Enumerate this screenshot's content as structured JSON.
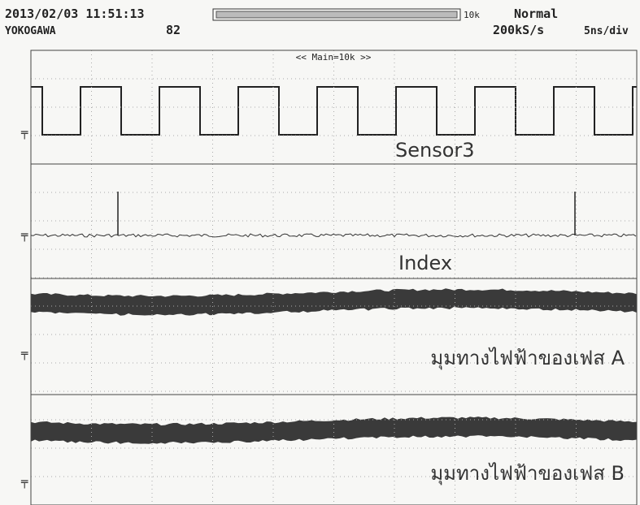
{
  "header": {
    "datetime": "2013/02/03 11:51:13",
    "brand": "YOKOGAWA",
    "count": "82",
    "zoom": "10k",
    "mode": "Normal",
    "sample_rate": "200kS/s",
    "time_div": "5ns/div"
  },
  "display": {
    "main_label": "<< Main=10k >>"
  },
  "channels": [
    {
      "label": "Sensor3"
    },
    {
      "label": "Index"
    },
    {
      "label": "มุมทางไฟฟ้าของเฟส A"
    },
    {
      "label": "มุมทางไฟฟ้าของเฟส B"
    }
  ]
}
